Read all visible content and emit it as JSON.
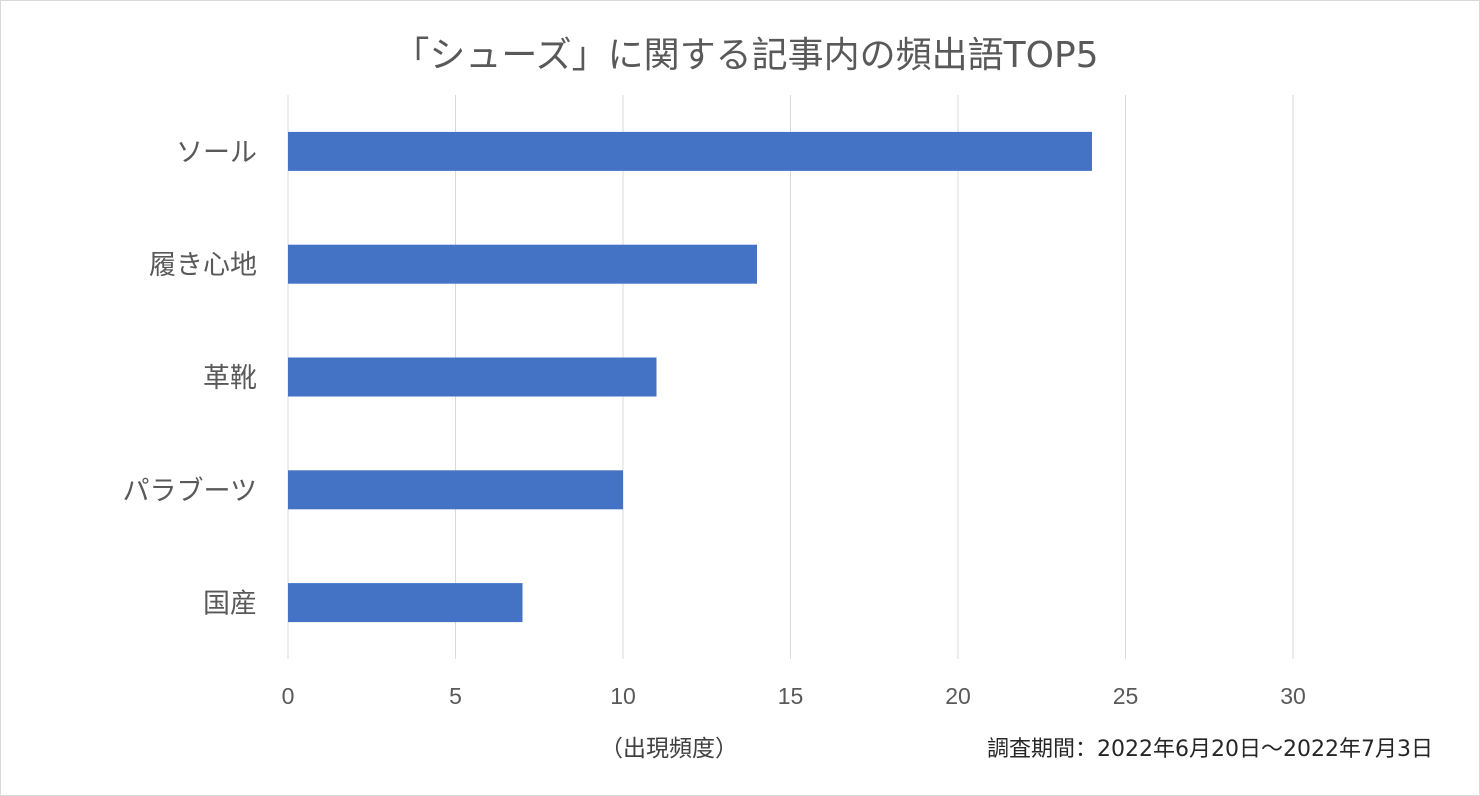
{
  "chart_data": {
    "type": "bar",
    "orientation": "horizontal",
    "title": "「シューズ」に関する記事内の頻出語TOP5",
    "categories": [
      "ソール",
      "履き心地",
      "革靴",
      "パラブーツ",
      "国産"
    ],
    "values": [
      24,
      14,
      11,
      10,
      7
    ],
    "xlabel": "（出現頻度）",
    "ylabel": "",
    "xlim": [
      0,
      30
    ],
    "xticks": [
      0,
      5,
      10,
      15,
      20,
      25,
      30
    ],
    "grid": true,
    "legend": "none",
    "bar_color": "#4472c4",
    "annotation": "調査期間：2022年6月20日〜2022年7月3日"
  }
}
